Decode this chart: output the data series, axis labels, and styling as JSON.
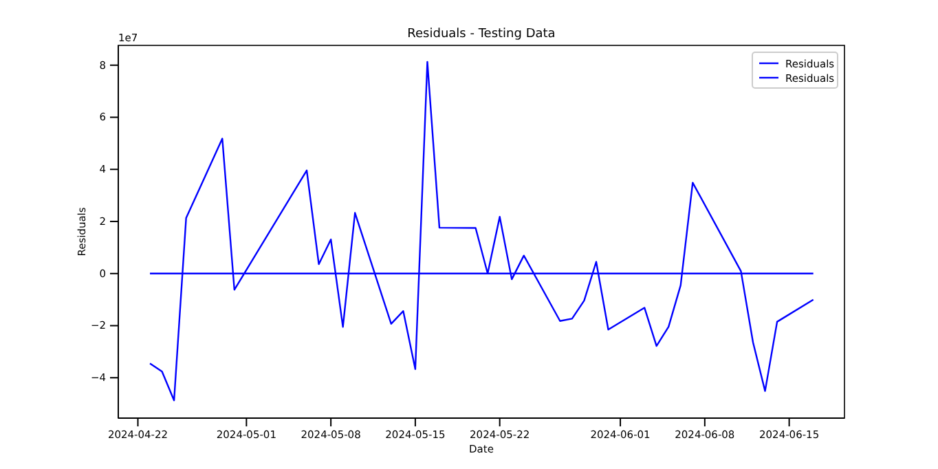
{
  "chart_data": {
    "type": "line",
    "title": "Residuals - Testing Data",
    "xlabel": "Date",
    "ylabel": "Residuals",
    "annotations": [
      "1e7"
    ],
    "xlim": [
      "2024-04-20T09:00",
      "2024-06-19T14:00"
    ],
    "xticks": [
      {
        "value": "2024-04-22",
        "label": "2024-04-22"
      },
      {
        "value": "2024-05-01",
        "label": "2024-05-01"
      },
      {
        "value": "2024-05-08",
        "label": "2024-05-08"
      },
      {
        "value": "2024-05-15",
        "label": "2024-05-15"
      },
      {
        "value": "2024-05-22",
        "label": "2024-05-22"
      },
      {
        "value": "2024-06-01",
        "label": "2024-06-01"
      },
      {
        "value": "2024-06-08",
        "label": "2024-06-08"
      },
      {
        "value": "2024-06-15",
        "label": "2024-06-15"
      }
    ],
    "ylim": [
      -5.55,
      8.76
    ],
    "yticks": [
      -4,
      -2,
      0,
      2,
      4,
      6,
      8
    ],
    "legend": "top right",
    "grid": false,
    "marker": "none",
    "line_style": "solid",
    "series": [
      {
        "name": "Residuals",
        "color": "#0000ff",
        "x": [
          "2024-04-23",
          "2024-04-24",
          "2024-04-25",
          "2024-04-26",
          "2024-04-29",
          "2024-04-30",
          "2024-05-06",
          "2024-05-07",
          "2024-05-08",
          "2024-05-09",
          "2024-05-10",
          "2024-05-13",
          "2024-05-14",
          "2024-05-15",
          "2024-05-16",
          "2024-05-17",
          "2024-05-20",
          "2024-05-21",
          "2024-05-22",
          "2024-05-23",
          "2024-05-24",
          "2024-05-27",
          "2024-05-28",
          "2024-05-29",
          "2024-05-30",
          "2024-05-31",
          "2024-06-03",
          "2024-06-04",
          "2024-06-05",
          "2024-06-06",
          "2024-06-07",
          "2024-06-11",
          "2024-06-12",
          "2024-06-13",
          "2024-06-14",
          "2024-06-17"
        ],
        "values": [
          -3.45,
          -3.76,
          -4.87,
          2.13,
          5.18,
          -0.62,
          3.96,
          0.36,
          1.31,
          -2.05,
          2.33,
          -1.93,
          -1.44,
          -3.67,
          8.13,
          1.76,
          1.75,
          0,
          2.18,
          -0.22,
          0.69,
          -1.82,
          -1.73,
          -1.04,
          0.45,
          -2.15,
          -1.31,
          -2.78,
          -2.04,
          -0.45,
          3.49,
          0.09,
          -2.64,
          -4.51,
          -1.85,
          -1.0
        ]
      },
      {
        "name": "Residuals",
        "color": "#0000ff",
        "x": [
          "2024-04-23",
          "2024-06-17"
        ],
        "values": [
          0,
          0
        ]
      }
    ]
  }
}
